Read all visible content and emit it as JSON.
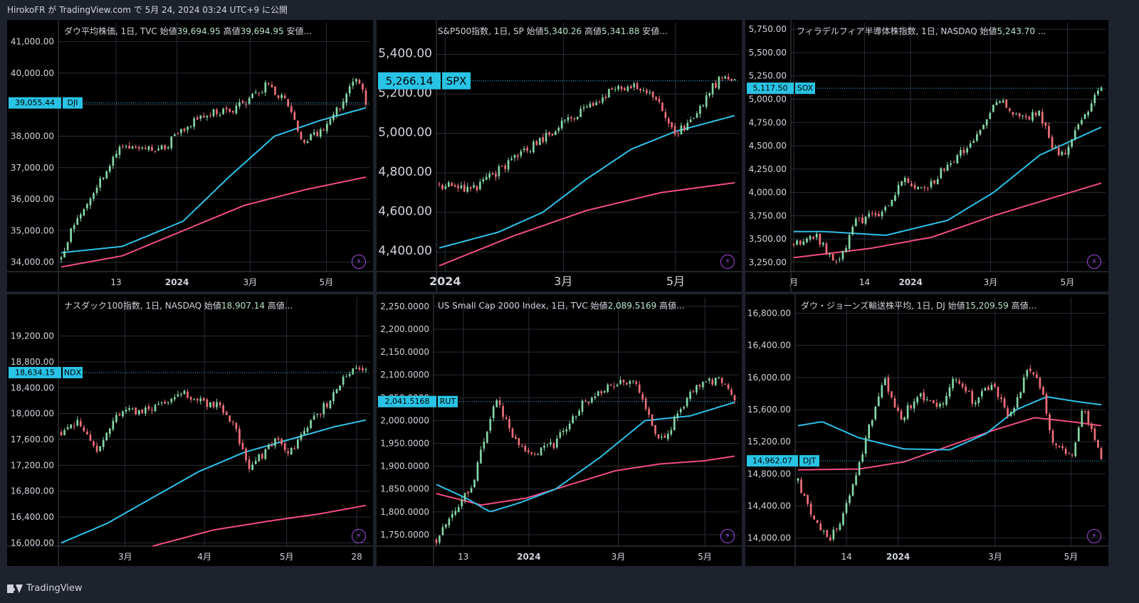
{
  "header": {
    "text": "HirokoFR が TradingView.com で 5月 24, 2024 03:24 UTC+9 に公開"
  },
  "footer": {
    "brand": "TradingView",
    "icon": "tradingview-logo-icon"
  },
  "colors": {
    "up": "#86d6a6",
    "down": "#ef6f7a",
    "ma_short": "#2ec1e8",
    "ma_long": "#f24d82",
    "badge": "#29c3e5",
    "grid": "#2a2e39",
    "bg": "#000000",
    "frame": "#1e222d"
  },
  "chart_data": [
    {
      "id": "dji",
      "type": "candlestick",
      "legend": {
        "name": "ダウ平均株価, 1日, TVC",
        "open_label": "始値",
        "open": "39,694.95",
        "high_label": "高値",
        "high": "39,694.95",
        "more": "安値..."
      },
      "ylim": [
        33700,
        41600
      ],
      "yticks": [
        {
          "v": 34000,
          "label": "34,000.00"
        },
        {
          "v": 35000,
          "label": "35,000.00"
        },
        {
          "v": 36000,
          "label": "36,000.00"
        },
        {
          "v": 37000,
          "label": "37,000.00"
        },
        {
          "v": 38000,
          "label": "38,000.00"
        },
        {
          "v": 39000,
          "label": "39,000.00"
        },
        {
          "v": 40000,
          "label": "40,000.00"
        },
        {
          "v": 41000,
          "label": "41,000.00"
        }
      ],
      "xticks": [
        {
          "pos": 0.18,
          "label": "13"
        },
        {
          "pos": 0.38,
          "label": "2024"
        },
        {
          "pos": 0.62,
          "label": "3月"
        },
        {
          "pos": 0.87,
          "label": "5月"
        }
      ],
      "last": {
        "price": 39055.44,
        "label": "39,055.44",
        "ticker": "DJI"
      },
      "close_path": [
        [
          0,
          34100
        ],
        [
          0.03,
          35000
        ],
        [
          0.12,
          36500
        ],
        [
          0.2,
          37700
        ],
        [
          0.33,
          37600
        ],
        [
          0.45,
          38600
        ],
        [
          0.58,
          38900
        ],
        [
          0.67,
          39600
        ],
        [
          0.74,
          39200
        ],
        [
          0.79,
          37800
        ],
        [
          0.87,
          38300
        ],
        [
          0.92,
          39000
        ],
        [
          0.97,
          39900
        ],
        [
          1.0,
          39055
        ]
      ],
      "ma_short": [
        [
          0,
          34300
        ],
        [
          0.2,
          34500
        ],
        [
          0.4,
          35300
        ],
        [
          0.55,
          36700
        ],
        [
          0.7,
          38000
        ],
        [
          0.85,
          38500
        ],
        [
          1.0,
          38900
        ]
      ],
      "ma_long": [
        [
          0,
          33850
        ],
        [
          0.2,
          34200
        ],
        [
          0.4,
          35000
        ],
        [
          0.6,
          35800
        ],
        [
          0.8,
          36300
        ],
        [
          1.0,
          36700
        ]
      ]
    },
    {
      "id": "spx",
      "type": "candlestick",
      "legend": {
        "name": "S&P500指数, 1日, SP",
        "open_label": "始値",
        "open": "5,340.26",
        "high_label": "高値",
        "high": "5,341.88",
        "more": "安値..."
      },
      "ylim": [
        4300,
        5560
      ],
      "yticks": [
        {
          "v": 4400,
          "label": "4,400.00"
        },
        {
          "v": 4600,
          "label": "4,600.00"
        },
        {
          "v": 4800,
          "label": "4,800.00"
        },
        {
          "v": 5000,
          "label": "5,000.00"
        },
        {
          "v": 5200,
          "label": "5,200.00"
        },
        {
          "v": 5400,
          "label": "5,400.00"
        }
      ],
      "xticks": [
        {
          "pos": 0.02,
          "label": "2024"
        },
        {
          "pos": 0.42,
          "label": "3月"
        },
        {
          "pos": 0.8,
          "label": "5月"
        }
      ],
      "last": {
        "price": 5266.14,
        "label": "5,266.14",
        "ticker": "SPX"
      },
      "close_path": [
        [
          0,
          4740
        ],
        [
          0.12,
          4720
        ],
        [
          0.28,
          4900
        ],
        [
          0.45,
          5080
        ],
        [
          0.6,
          5230
        ],
        [
          0.68,
          5240
        ],
        [
          0.75,
          5130
        ],
        [
          0.8,
          5000
        ],
        [
          0.86,
          5060
        ],
        [
          0.92,
          5230
        ],
        [
          0.97,
          5300
        ],
        [
          1.0,
          5266
        ]
      ],
      "ma_short": [
        [
          0,
          4420
        ],
        [
          0.2,
          4500
        ],
        [
          0.35,
          4600
        ],
        [
          0.5,
          4770
        ],
        [
          0.65,
          4920
        ],
        [
          0.8,
          5010
        ],
        [
          1.0,
          5090
        ]
      ],
      "ma_long": [
        [
          0,
          4330
        ],
        [
          0.25,
          4480
        ],
        [
          0.5,
          4610
        ],
        [
          0.75,
          4700
        ],
        [
          1.0,
          4750
        ]
      ]
    },
    {
      "id": "sox",
      "type": "candlestick",
      "legend": {
        "name": "フィラデルフィア半導体株指数, 1日, NASDAQ",
        "open_label": "始値",
        "open": "5,243.70",
        "more": "..."
      },
      "ylim": [
        3150,
        5820
      ],
      "yticks": [
        {
          "v": 3250,
          "label": "3,250.00"
        },
        {
          "v": 3500,
          "label": "3,500.00"
        },
        {
          "v": 3750,
          "label": "3,750.00"
        },
        {
          "v": 4000,
          "label": "4,000.00"
        },
        {
          "v": 4250,
          "label": "4,250.00"
        },
        {
          "v": 4500,
          "label": "4,500.00"
        },
        {
          "v": 4750,
          "label": "4,750.00"
        },
        {
          "v": 5000,
          "label": "5,000.00"
        },
        {
          "v": 5250,
          "label": "5,250.00"
        },
        {
          "v": 5500,
          "label": "5,500.00"
        },
        {
          "v": 5750,
          "label": "5,750.00"
        }
      ],
      "xticks": [
        {
          "pos": 0.0,
          "label": "月"
        },
        {
          "pos": 0.23,
          "label": "14"
        },
        {
          "pos": 0.38,
          "label": "2024"
        },
        {
          "pos": 0.64,
          "label": "3月"
        },
        {
          "pos": 0.89,
          "label": "5月"
        }
      ],
      "last": {
        "price": 5117.5,
        "label": "5,117.50",
        "ticker": "SOX"
      },
      "close_path": [
        [
          0,
          3450
        ],
        [
          0.07,
          3550
        ],
        [
          0.12,
          3300
        ],
        [
          0.15,
          3250
        ],
        [
          0.2,
          3700
        ],
        [
          0.28,
          3750
        ],
        [
          0.36,
          4150
        ],
        [
          0.42,
          4000
        ],
        [
          0.5,
          4300
        ],
        [
          0.58,
          4500
        ],
        [
          0.66,
          5000
        ],
        [
          0.74,
          4800
        ],
        [
          0.8,
          4850
        ],
        [
          0.84,
          4500
        ],
        [
          0.88,
          4400
        ],
        [
          0.94,
          4800
        ],
        [
          1.0,
          5150
        ]
      ],
      "ma_short": [
        [
          0,
          3580
        ],
        [
          0.1,
          3580
        ],
        [
          0.3,
          3540
        ],
        [
          0.5,
          3700
        ],
        [
          0.65,
          4000
        ],
        [
          0.8,
          4400
        ],
        [
          1.0,
          4700
        ]
      ],
      "ma_long": [
        [
          0,
          3300
        ],
        [
          0.25,
          3400
        ],
        [
          0.45,
          3520
        ],
        [
          0.65,
          3750
        ],
        [
          0.85,
          3950
        ],
        [
          1.0,
          4100
        ]
      ]
    },
    {
      "id": "ndx",
      "type": "candlestick",
      "legend": {
        "name": "ナスダック100指数, 1日, NASDAQ",
        "open_label": "始値",
        "open": "18,907.14",
        "more": "高値..."
      },
      "ylim": [
        15950,
        19800
      ],
      "yticks": [
        {
          "v": 16000,
          "label": "16,000.00"
        },
        {
          "v": 16400,
          "label": "16,400.00"
        },
        {
          "v": 16800,
          "label": "16,800.00"
        },
        {
          "v": 17200,
          "label": "17,200.00"
        },
        {
          "v": 17600,
          "label": "17,600.00"
        },
        {
          "v": 18000,
          "label": "18,000.00"
        },
        {
          "v": 18400,
          "label": "18,400.00"
        },
        {
          "v": 18800,
          "label": "18,800.00"
        },
        {
          "v": 19200,
          "label": "19,200.00"
        }
      ],
      "xticks": [
        {
          "pos": 0.21,
          "label": "3月"
        },
        {
          "pos": 0.47,
          "label": "4月"
        },
        {
          "pos": 0.74,
          "label": "5月"
        },
        {
          "pos": 0.97,
          "label": "28"
        }
      ],
      "last": {
        "price": 18634.15,
        "label": "18,634.15",
        "ticker": "NDX"
      },
      "close_path": [
        [
          0,
          17700
        ],
        [
          0.05,
          17900
        ],
        [
          0.12,
          17400
        ],
        [
          0.18,
          18000
        ],
        [
          0.3,
          18050
        ],
        [
          0.4,
          18300
        ],
        [
          0.52,
          18100
        ],
        [
          0.56,
          17900
        ],
        [
          0.62,
          17150
        ],
        [
          0.7,
          17600
        ],
        [
          0.76,
          17400
        ],
        [
          0.82,
          17900
        ],
        [
          0.88,
          18200
        ],
        [
          0.95,
          18700
        ],
        [
          1.0,
          18634
        ]
      ],
      "ma_short": [
        [
          0,
          16000
        ],
        [
          0.15,
          16300
        ],
        [
          0.3,
          16700
        ],
        [
          0.45,
          17100
        ],
        [
          0.6,
          17400
        ],
        [
          0.75,
          17600
        ],
        [
          0.9,
          17800
        ],
        [
          1.0,
          17900
        ]
      ],
      "ma_long": [
        [
          0.3,
          15950
        ],
        [
          0.5,
          16200
        ],
        [
          0.7,
          16350
        ],
        [
          0.85,
          16450
        ],
        [
          1.0,
          16580
        ]
      ]
    },
    {
      "id": "rut",
      "type": "candlestick",
      "legend": {
        "name": "US Small Cap 2000 Index, 1日, TVC",
        "open_label": "始値",
        "open": "2,089.5169",
        "more": "高値..."
      },
      "ylim": [
        1725,
        2270
      ],
      "yticks": [
        {
          "v": 1750,
          "label": "1,750.0000"
        },
        {
          "v": 1800,
          "label": "1,800.0000"
        },
        {
          "v": 1850,
          "label": "1,850.0000"
        },
        {
          "v": 1900,
          "label": "1,900.0000"
        },
        {
          "v": 1950,
          "label": "1,950.0000"
        },
        {
          "v": 2000,
          "label": "2,000.0000"
        },
        {
          "v": 2050,
          "label": "2,050.0000"
        },
        {
          "v": 2100,
          "label": "2,100.0000"
        },
        {
          "v": 2150,
          "label": "2,150.0000"
        },
        {
          "v": 2200,
          "label": "2,200.0000"
        },
        {
          "v": 2250,
          "label": "2,250.0000"
        }
      ],
      "xticks": [
        {
          "pos": 0.09,
          "label": "13"
        },
        {
          "pos": 0.31,
          "label": "2024"
        },
        {
          "pos": 0.61,
          "label": "3月"
        },
        {
          "pos": 0.9,
          "label": "5月"
        }
      ],
      "last": {
        "price": 2041.5168,
        "label": "2,041.5168",
        "ticker": "RUT"
      },
      "close_path": [
        [
          0,
          1740
        ],
        [
          0.05,
          1790
        ],
        [
          0.12,
          1860
        ],
        [
          0.2,
          2050
        ],
        [
          0.26,
          1960
        ],
        [
          0.32,
          1920
        ],
        [
          0.4,
          1950
        ],
        [
          0.48,
          2030
        ],
        [
          0.58,
          2080
        ],
        [
          0.66,
          2090
        ],
        [
          0.7,
          2030
        ],
        [
          0.74,
          1950
        ],
        [
          0.79,
          1990
        ],
        [
          0.85,
          2060
        ],
        [
          0.9,
          2090
        ],
        [
          0.96,
          2085
        ],
        [
          1.0,
          2041
        ]
      ],
      "ma_short": [
        [
          0,
          1860
        ],
        [
          0.1,
          1830
        ],
        [
          0.18,
          1800
        ],
        [
          0.28,
          1820
        ],
        [
          0.4,
          1850
        ],
        [
          0.55,
          1920
        ],
        [
          0.7,
          2000
        ],
        [
          0.85,
          2010
        ],
        [
          1.0,
          2040
        ]
      ],
      "ma_long": [
        [
          0,
          1840
        ],
        [
          0.15,
          1815
        ],
        [
          0.3,
          1830
        ],
        [
          0.45,
          1860
        ],
        [
          0.6,
          1890
        ],
        [
          0.75,
          1905
        ],
        [
          0.9,
          1912
        ],
        [
          1.0,
          1922
        ]
      ]
    },
    {
      "id": "djt",
      "type": "candlestick",
      "legend": {
        "name": "ダウ・ジョーンズ輸送株平均, 1日, DJ",
        "open_label": "始値",
        "open": "15,209.59",
        "more": "高値..."
      },
      "ylim": [
        13900,
        17000
      ],
      "yticks": [
        {
          "v": 14000,
          "label": "14,000.00"
        },
        {
          "v": 14400,
          "label": "14,400.00"
        },
        {
          "v": 14800,
          "label": "14,800.00"
        },
        {
          "v": 15200,
          "label": "15,200.00"
        },
        {
          "v": 15600,
          "label": "15,600.00"
        },
        {
          "v": 16000,
          "label": "16,000.00"
        },
        {
          "v": 16400,
          "label": "16,400.00"
        },
        {
          "v": 16800,
          "label": "16,800.00"
        }
      ],
      "xticks": [
        {
          "pos": 0.16,
          "label": "14"
        },
        {
          "pos": 0.33,
          "label": "2024"
        },
        {
          "pos": 0.65,
          "label": "3月"
        },
        {
          "pos": 0.9,
          "label": "5月"
        }
      ],
      "last": {
        "price": 14962.07,
        "label": "14,962.07",
        "ticker": "DJT"
      },
      "close_path": [
        [
          0,
          14700
        ],
        [
          0.06,
          14200
        ],
        [
          0.1,
          13950
        ],
        [
          0.15,
          14300
        ],
        [
          0.2,
          14900
        ],
        [
          0.28,
          16000
        ],
        [
          0.34,
          15500
        ],
        [
          0.4,
          15800
        ],
        [
          0.46,
          15600
        ],
        [
          0.52,
          16000
        ],
        [
          0.58,
          15700
        ],
        [
          0.64,
          15900
        ],
        [
          0.7,
          15500
        ],
        [
          0.76,
          16100
        ],
        [
          0.8,
          15900
        ],
        [
          0.84,
          15200
        ],
        [
          0.9,
          15000
        ],
        [
          0.94,
          15650
        ],
        [
          1.0,
          14962
        ]
      ],
      "ma_short": [
        [
          0,
          15400
        ],
        [
          0.08,
          15450
        ],
        [
          0.2,
          15250
        ],
        [
          0.35,
          15110
        ],
        [
          0.5,
          15100
        ],
        [
          0.62,
          15300
        ],
        [
          0.72,
          15600
        ],
        [
          0.82,
          15760
        ],
        [
          0.92,
          15700
        ],
        [
          1.0,
          15660
        ]
      ],
      "ma_long": [
        [
          0,
          14850
        ],
        [
          0.2,
          14860
        ],
        [
          0.35,
          14950
        ],
        [
          0.5,
          15150
        ],
        [
          0.65,
          15350
        ],
        [
          0.78,
          15500
        ],
        [
          0.9,
          15450
        ],
        [
          1.0,
          15400
        ]
      ]
    }
  ]
}
